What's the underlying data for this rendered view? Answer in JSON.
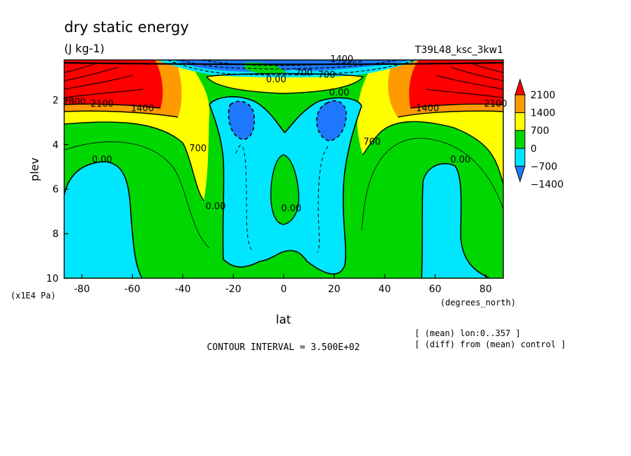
{
  "chart_data": {
    "type": "heatmap",
    "title": "dry static energy",
    "units": "(J kg-1)",
    "experiment": "T39L48_ksc_3kw1",
    "xlabel": "lat",
    "xunits": "(degrees_north)",
    "ylabel": "plev",
    "yunits": "(x1E4 Pa)",
    "xlim": [
      -87,
      87
    ],
    "ylim": [
      10,
      0.2
    ],
    "xticks": [
      -80,
      -60,
      -40,
      -20,
      0,
      20,
      40,
      60,
      80
    ],
    "yticks": [
      2,
      4,
      6,
      8,
      10
    ],
    "contour_interval_label": "CONTOUR INTERVAL = 3.500E+02",
    "notes": [
      "[ (mean) lon:0..357 ]",
      "[ (diff) from (mean) control ]"
    ],
    "colorbar": {
      "levels": [
        -1400,
        -700,
        0,
        700,
        1400,
        2100
      ],
      "labels": [
        "2100",
        "1400",
        "700",
        "0",
        "−700",
        "−1400"
      ],
      "colors": [
        "#1e78ff",
        "#00e6ff",
        "#00d700",
        "#ffff00",
        "#ff9b00",
        "#ff0000"
      ]
    },
    "contour_labels": [
      {
        "text": "0.00",
        "lat": -72,
        "p": 4.8
      },
      {
        "text": "0.00",
        "lat": 70,
        "p": 4.8
      },
      {
        "text": "700",
        "lat": -34,
        "p": 4.3
      },
      {
        "text": "700",
        "lat": 35,
        "p": 4.0
      },
      {
        "text": "1400",
        "lat": -56,
        "p": 2.5
      },
      {
        "text": "1400",
        "lat": 57,
        "p": 2.5
      },
      {
        "text": "2100",
        "lat": -72,
        "p": 2.3
      },
      {
        "text": "2100",
        "lat": 84,
        "p": 2.3
      },
      {
        "text": "2800",
        "lat": -83,
        "p": 2.2
      },
      {
        "text": "0.00",
        "lat": -27,
        "p": 6.9
      },
      {
        "text": "0.00",
        "lat": 3,
        "p": 7.0
      },
      {
        "text": "0.00",
        "lat": -3,
        "p": 1.2
      },
      {
        "text": "0.00",
        "lat": 22,
        "p": 1.8
      },
      {
        "text": "700",
        "lat": 8,
        "p": 0.9
      },
      {
        "text": "700",
        "lat": 17,
        "p": 1.0
      },
      {
        "text": "1400",
        "lat": 23,
        "p": 0.3
      }
    ]
  }
}
